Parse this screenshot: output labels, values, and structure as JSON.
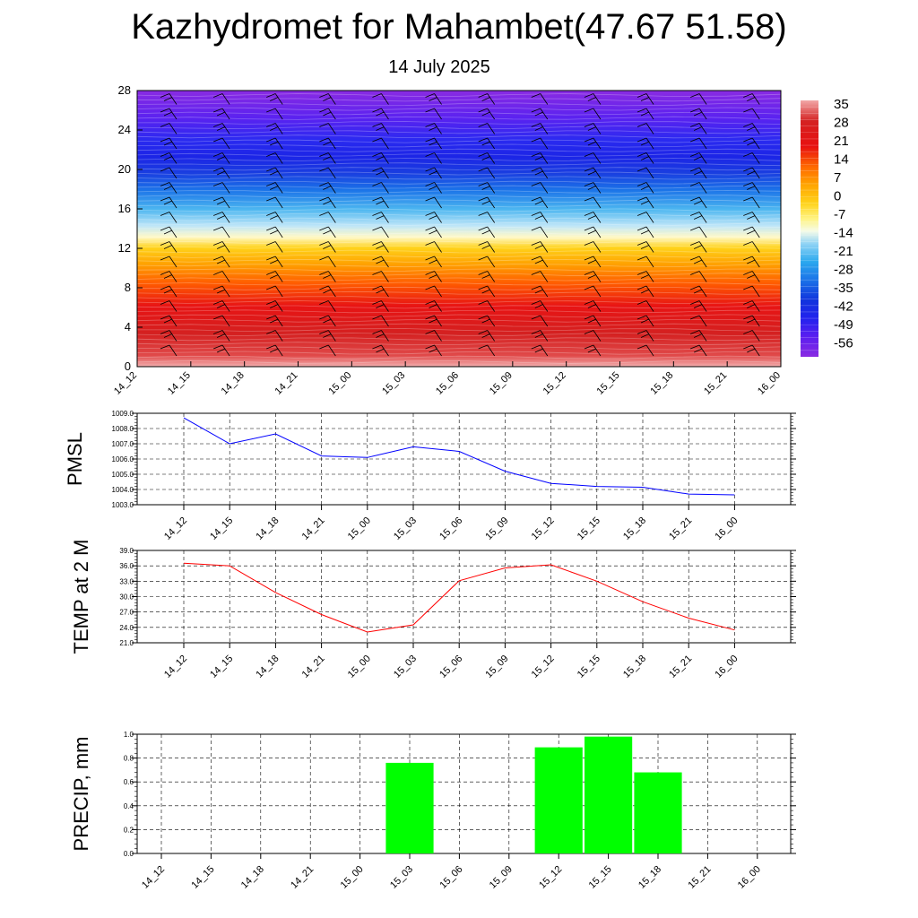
{
  "title": "Kazhydromet for Mahambet(47.67 51.58)",
  "subtitle": "14 July 2025",
  "time_labels": [
    "14_12",
    "14_15",
    "14_18",
    "14_21",
    "15_00",
    "15_03",
    "15_06",
    "15_09",
    "15_12",
    "15_15",
    "15_18",
    "15_21",
    "16_00"
  ],
  "chart_data": [
    {
      "type": "heatmap",
      "name": "cross-section",
      "x": [
        "14_12",
        "14_15",
        "14_18",
        "14_21",
        "15_00",
        "15_03",
        "15_06",
        "15_09",
        "15_12",
        "15_15",
        "15_18",
        "15_21",
        "16_00"
      ],
      "y_ticks": [
        0,
        4,
        8,
        12,
        16,
        20,
        24,
        28
      ],
      "ylim": [
        0,
        28
      ],
      "colorbar_labels": [
        "35",
        "28",
        "21",
        "14",
        "7",
        "0",
        "-7",
        "-14",
        "-21",
        "-28",
        "-35",
        "-42",
        "-49",
        "-56"
      ],
      "colorbar_range": [
        -60,
        40
      ],
      "colors": {
        "-60": "#8a2be2",
        "-56": "#6a1ef0",
        "-49": "#2222ee",
        "-42": "#1133dd",
        "-35": "#1b73e8",
        "-28": "#2ba8ee",
        "-21": "#8fd3f5",
        "-14": "#f5fbe8",
        "-7": "#fff380",
        "0": "#ffd21a",
        "7": "#ffa500",
        "14": "#ff6a00",
        "21": "#e81010",
        "28": "#d42222",
        "35": "#f2a8a8"
      },
      "wind_barbs": true
    },
    {
      "type": "line",
      "ylabel": "PMSL",
      "x": [
        "14_12",
        "14_15",
        "14_18",
        "14_21",
        "15_00",
        "15_03",
        "15_06",
        "15_09",
        "15_12",
        "15_15",
        "15_18",
        "15_21",
        "16_00"
      ],
      "y": [
        1008.7,
        1007.0,
        1007.65,
        1006.2,
        1006.1,
        1006.8,
        1006.5,
        1005.2,
        1004.4,
        1004.2,
        1004.15,
        1003.7,
        1003.65
      ],
      "ylim": [
        1003.0,
        1009.0
      ],
      "y_ticks": [
        "1003.0",
        "1004.0",
        "1005.0",
        "1006.0",
        "1007.0",
        "1008.0",
        "1009.0"
      ],
      "color": "#0000ff",
      "grid": true
    },
    {
      "type": "line",
      "ylabel": "TEMP at 2 M",
      "x": [
        "14_12",
        "14_15",
        "14_18",
        "14_21",
        "15_00",
        "15_03",
        "15_06",
        "15_09",
        "15_12",
        "15_15",
        "15_18",
        "15_21",
        "16_00"
      ],
      "y": [
        36.5,
        36.0,
        30.8,
        26.5,
        23.1,
        24.5,
        33.1,
        35.6,
        36.2,
        33.0,
        29.0,
        25.8,
        23.5
      ],
      "ylim": [
        21.0,
        39.0
      ],
      "y_ticks": [
        "21.0",
        "24.0",
        "27.0",
        "30.0",
        "33.0",
        "36.0",
        "39.0"
      ],
      "color": "#ff0000",
      "grid": true
    },
    {
      "type": "bar",
      "ylabel": "PRECIP, mm",
      "categories": [
        "14_12",
        "14_15",
        "14_18",
        "14_21",
        "15_00",
        "15_03",
        "15_06",
        "15_09",
        "15_12",
        "15_15",
        "15_18",
        "15_21",
        "16_00"
      ],
      "values": [
        0,
        0,
        0,
        0,
        0,
        0.76,
        0,
        0,
        0.89,
        0.98,
        0.68,
        0,
        0
      ],
      "ylim": [
        0.0,
        1.0
      ],
      "y_ticks": [
        "0.0",
        "0.2",
        "0.4",
        "0.6",
        "0.8",
        "1.0"
      ],
      "color": "#00ff00",
      "grid": true
    }
  ]
}
